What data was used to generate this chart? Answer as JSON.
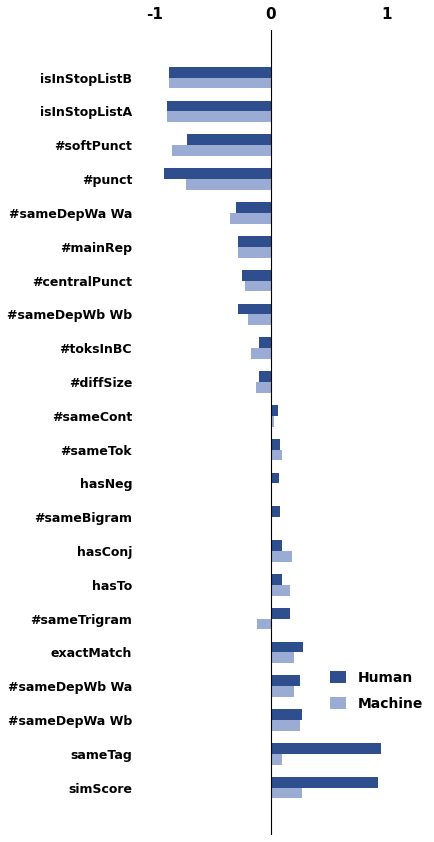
{
  "features": [
    "isInStopListB",
    "isInStopListA",
    "#softPunct",
    "#punct",
    "#sameDepWa Wa",
    "#mainRep",
    "#centralPunct",
    "#sameDepWb Wb",
    "#toksInBC",
    "#diffSize",
    "#sameCont",
    "#sameTok",
    "hasNeg",
    "#sameBigram",
    "hasConj",
    "hasTo",
    "#sameTrigram",
    "exactMatch",
    "#sameDepWb Wa",
    "#sameDepWa Wb",
    "sameTag",
    "simScore"
  ],
  "human": [
    -0.88,
    -0.9,
    -0.72,
    -0.92,
    -0.3,
    -0.28,
    -0.25,
    -0.28,
    -0.1,
    -0.1,
    0.06,
    0.08,
    0.07,
    0.08,
    0.1,
    0.1,
    0.17,
    0.28,
    0.25,
    0.27,
    0.95,
    0.93
  ],
  "machine": [
    -0.88,
    -0.9,
    -0.85,
    -0.73,
    -0.35,
    -0.28,
    -0.22,
    -0.2,
    -0.17,
    -0.13,
    0.03,
    0.1,
    0.0,
    0.0,
    0.18,
    0.17,
    -0.12,
    0.2,
    0.2,
    0.25,
    0.1,
    0.27
  ],
  "human_color": "#2e4e8e",
  "machine_color": "#9bacd4",
  "background_color": "#ffffff",
  "xlim": [
    -1.15,
    1.35
  ],
  "xticks": [
    -1,
    0,
    1
  ],
  "bar_height": 0.32,
  "legend_human": "Human",
  "legend_machine": "Machine"
}
